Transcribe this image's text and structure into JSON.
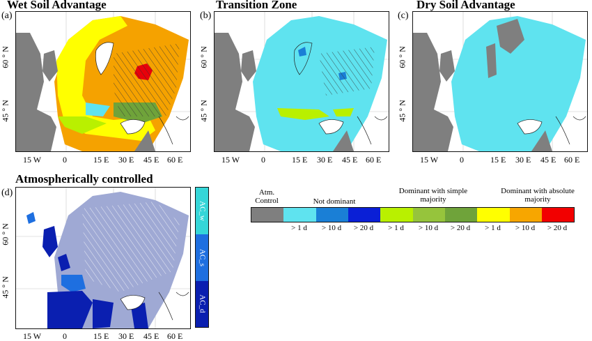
{
  "panels": [
    {
      "id": "a",
      "label": "(a)",
      "title": "Wet Soil Advantage"
    },
    {
      "id": "b",
      "label": "(b)",
      "title": "Transition Zone"
    },
    {
      "id": "c",
      "label": "(c)",
      "title": "Dry Soil Advantage"
    },
    {
      "id": "d",
      "label": "(d)",
      "title": "Atmospherically controlled"
    }
  ],
  "axes": {
    "lon_ticks": [
      "15  W",
      "0",
      "15  E",
      "30  E",
      "45  E",
      "60  E"
    ],
    "lat_ticks": [
      "60 ° N",
      "45 ° N"
    ],
    "lon_range": [
      -25,
      65
    ],
    "lat_range": [
      34,
      72
    ]
  },
  "colorbar_d": {
    "labels": [
      "AC_w",
      "AC_s",
      "AC_d"
    ],
    "colors": [
      "#35d6d8",
      "#1e6fe0",
      "#0a1fb0"
    ]
  },
  "legend": {
    "headers": {
      "atm_control": "Atm. Control",
      "not_dominant": "Not dominant",
      "simple_majority": "Dominant with simple majority",
      "absolute_majority": "Dominant with absolute majority"
    },
    "classes": [
      {
        "color": "#7f7f7f",
        "label": ""
      },
      {
        "color": "#5fe3ef",
        "label": "> 1 d"
      },
      {
        "color": "#1a7fd6",
        "label": "> 10 d"
      },
      {
        "color": "#0a1fd6",
        "label": "> 20 d"
      },
      {
        "color": "#b9f000",
        "label": "> 1 d"
      },
      {
        "color": "#96c43c",
        "label": "> 10 d"
      },
      {
        "color": "#6fa33a",
        "label": "> 20 d"
      },
      {
        "color": "#ffff00",
        "label": "> 1 d"
      },
      {
        "color": "#f7a600",
        "label": "> 10 d"
      },
      {
        "color": "#f20000",
        "label": "> 20 d"
      }
    ]
  },
  "colors": {
    "land_gray": "#7f7f7f",
    "wet_main": "#f5a200",
    "wet_edge": "#ffff00",
    "wet_peak": "#e8000a",
    "transition_main": "#5fe3ef",
    "dry_main": "#5fe3ef",
    "atm_fill": "#9fa9d4",
    "coast": "#222222"
  }
}
